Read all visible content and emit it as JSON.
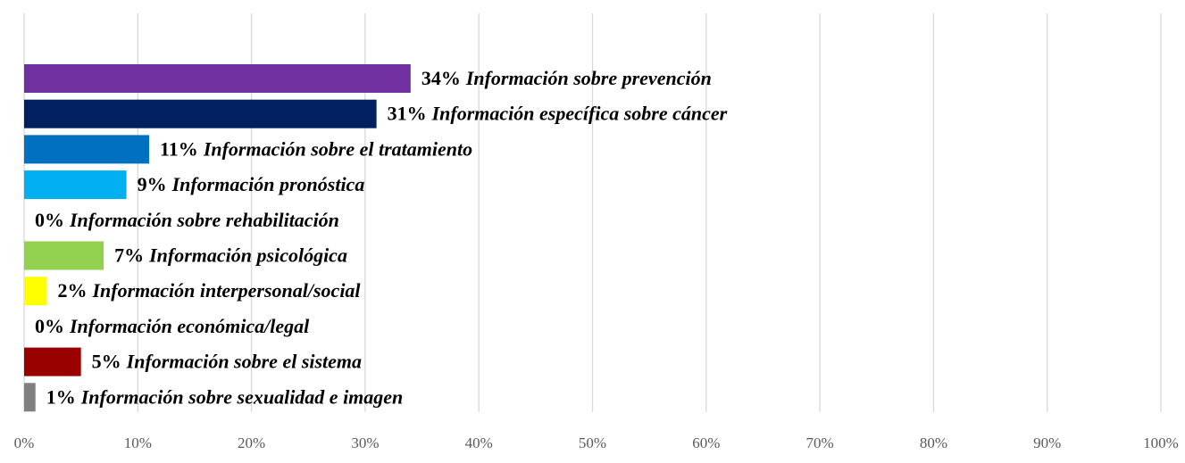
{
  "chart_data": {
    "type": "bar",
    "orientation": "horizontal",
    "categories": [
      "Información sobre prevención",
      "Información específica sobre cáncer",
      "Información sobre el tratamiento",
      "Información pronóstica",
      "Información sobre rehabilitación",
      "Información psicológica",
      "Información interpersonal/social",
      "Información económica/legal",
      "Información sobre el sistema",
      "Información sobre sexualidad e imagen"
    ],
    "values": [
      34,
      31,
      11,
      9,
      0,
      7,
      2,
      0,
      5,
      1
    ],
    "value_labels": [
      "34%",
      "31%",
      "11%",
      "9%",
      "0%",
      "7%",
      "2%",
      "0%",
      "5%",
      "1%"
    ],
    "colors": [
      "#7030a0",
      "#002060",
      "#0070c0",
      "#00b0f0",
      "#ffc000",
      "#92d050",
      "#ffff00",
      "#00b050",
      "#990000",
      "#808080"
    ],
    "xlim": [
      0,
      100
    ],
    "xticks": [
      {
        "value": 0,
        "label": "0%"
      },
      {
        "value": 10,
        "label": "10%"
      },
      {
        "value": 20,
        "label": "20%"
      },
      {
        "value": 30,
        "label": "30%"
      },
      {
        "value": 40,
        "label": "40%"
      },
      {
        "value": 50,
        "label": "50%"
      },
      {
        "value": 60,
        "label": "60%"
      },
      {
        "value": 70,
        "label": "70%"
      },
      {
        "value": 80,
        "label": "80%"
      },
      {
        "value": 90,
        "label": "90%"
      },
      {
        "value": 100,
        "label": "100%"
      }
    ],
    "grid": true
  }
}
